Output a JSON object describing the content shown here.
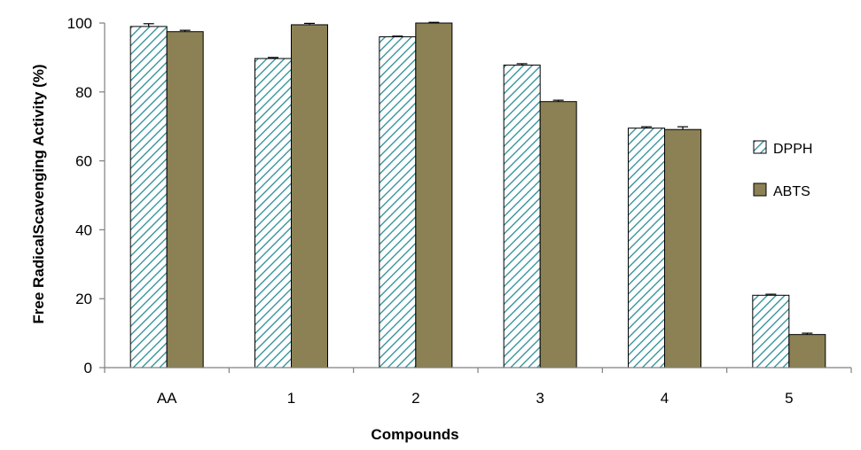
{
  "chart_data": {
    "type": "bar",
    "title": "",
    "xlabel": "Compounds",
    "ylabel": "Free RadicalScavenging  Activity (%)",
    "categories": [
      "AA",
      "1",
      "2",
      "3",
      "4",
      "5"
    ],
    "ylim": [
      0,
      100
    ],
    "yticks": [
      0,
      20,
      40,
      60,
      80,
      100
    ],
    "grid": false,
    "legend_position": "right",
    "series": [
      {
        "name": "DPPH",
        "values": [
          99.0,
          89.7,
          96.0,
          87.8,
          69.5,
          21.0
        ],
        "errors": [
          0.8,
          0.3,
          0.2,
          0.4,
          0.4,
          0.3
        ],
        "fill": "hatched",
        "color": "#2a8c96"
      },
      {
        "name": "ABTS",
        "values": [
          97.5,
          99.5,
          100.0,
          77.2,
          69.1,
          9.6
        ],
        "errors": [
          0.4,
          0.4,
          0.2,
          0.4,
          0.8,
          0.4
        ],
        "fill": "solid",
        "color": "#8b8155"
      }
    ]
  }
}
